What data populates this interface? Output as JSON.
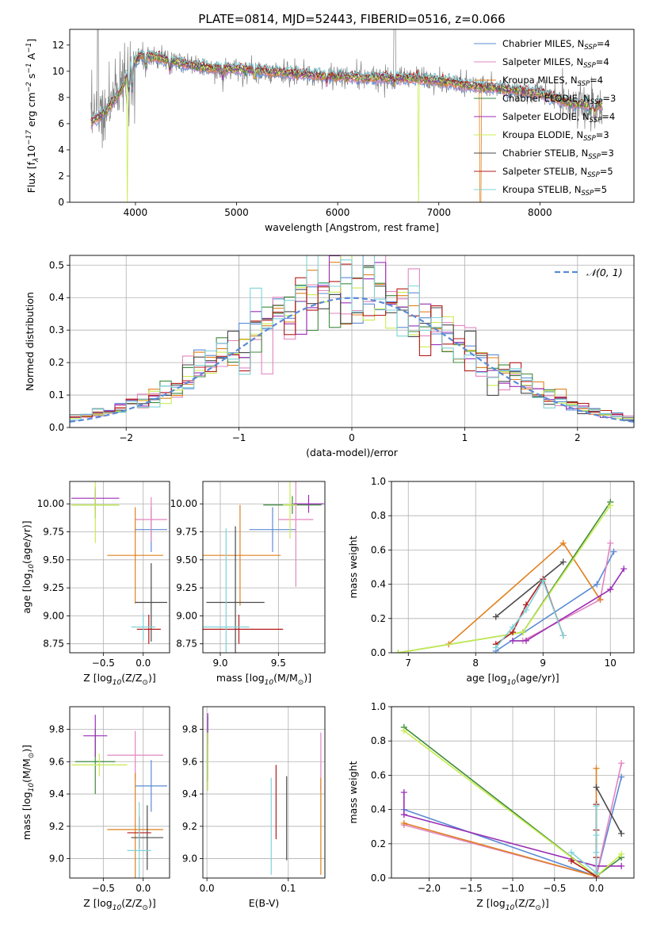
{
  "title": "PLATE=0814, MJD=52443, FIBERID=0516, z=0.066",
  "models": [
    {
      "name": "Chabrier MILES, N$_{SSP}$=4",
      "label_main": "Chabrier MILES, N",
      "label_sub": "SSP",
      "label_tail": "=4",
      "color": "#5b8bd6"
    },
    {
      "name": "Salpeter MILES, N$_{SSP}$=4",
      "label_main": "Salpeter MILES, N",
      "label_sub": "SSP",
      "label_tail": "=4",
      "color": "#e285c0"
    },
    {
      "name": "Kroupa MILES, N$_{SSP}$=4",
      "label_main": "Kroupa MILES, N",
      "label_sub": "SSP",
      "label_tail": "=4",
      "color": "#e0801e"
    },
    {
      "name": "Chabrier ELODIE, N$_{SSP}$=3",
      "label_main": "Chabrier ELODIE, N",
      "label_sub": "SSP",
      "label_tail": "=3",
      "color": "#3e8a3e"
    },
    {
      "name": "Salpeter ELODIE, N$_{SSP}$=4",
      "label_main": "Salpeter ELODIE, N",
      "label_sub": "SSP",
      "label_tail": "=4",
      "color": "#9a2fb5"
    },
    {
      "name": "Kroupa ELODIE, N$_{SSP}$=3",
      "label_main": "Kroupa ELODIE, N",
      "label_sub": "SSP",
      "label_tail": "=3",
      "color": "#c8ec50"
    },
    {
      "name": "Chabrier STELIB, N$_{SSP}$=3",
      "label_main": "Chabrier STELIB, N",
      "label_sub": "SSP",
      "label_tail": "=3",
      "color": "#4a4a4a"
    },
    {
      "name": "Salpeter STELIB, N$_{SSP}$=5",
      "label_main": "Salpeter STELIB, N",
      "label_sub": "SSP",
      "label_tail": "=5",
      "color": "#b51c1c"
    },
    {
      "name": "Kroupa STELIB, N$_{SSP}$=5",
      "label_main": "Kroupa STELIB, N",
      "label_sub": "SSP",
      "label_tail": "=5",
      "color": "#7fd3d8"
    }
  ],
  "chart_data": [
    {
      "id": "spectrum",
      "type": "line",
      "xlabel": "wavelength [Angstrom, rest frame]",
      "ylabel": "Flux [f$_\\lambda$10$^{-17}$ erg cm$^{-2}$ s$^{-1}$ A$^{-1}$]",
      "xlim": [
        3350,
        8930
      ],
      "ylim": [
        0,
        13.2
      ],
      "xticks": [
        4000,
        5000,
        6000,
        7000,
        8000
      ],
      "yticks": [
        0,
        2,
        4,
        6,
        8,
        10,
        12
      ],
      "legend": "upper right",
      "data_color": "#808080",
      "continuum": {
        "x": [
          3560,
          3700,
          3850,
          3950,
          4050,
          4200,
          4400,
          4600,
          4800,
          5000,
          5300,
          5600,
          6000,
          6300,
          6600,
          7000,
          7300,
          7600,
          8000,
          8300,
          8600
        ],
        "y": [
          6.1,
          6.9,
          8.4,
          10.4,
          11.2,
          11.1,
          10.7,
          10.4,
          10.2,
          10.2,
          10.0,
          9.8,
          9.6,
          9.5,
          9.5,
          9.3,
          8.9,
          8.7,
          8.3,
          7.6,
          7.4
        ]
      }
    },
    {
      "id": "residuals",
      "type": "step",
      "xlabel": "(data-model)/error",
      "ylabel": "Normed distribution",
      "xlim": [
        -2.5,
        2.5
      ],
      "ylim": [
        0,
        0.53
      ],
      "xticks": [
        -2,
        -1,
        0,
        1,
        2
      ],
      "yticks": [
        0.0,
        0.1,
        0.2,
        0.3,
        0.4,
        0.5
      ],
      "bin_width": 0.1,
      "reference": {
        "name": "$\\mathcal{N}(0,1)$",
        "label": "𝒩(0, 1)",
        "color": "#5b8bd6",
        "style": "dashed"
      },
      "grid": true
    },
    {
      "id": "age_vs_Z",
      "type": "errorbar",
      "xlabel": "Z [log$_{10}$(Z/Z$_\\odot$)]",
      "ylabel": "age  [log$_{10}$(age/yr)]",
      "xlim": [
        -0.92,
        0.33
      ],
      "ylim": [
        8.67,
        10.2
      ],
      "xticks": [
        -0.5,
        0.0
      ],
      "yticks": [
        8.75,
        9.0,
        9.25,
        9.5,
        9.75,
        10.0
      ],
      "points": [
        {
          "x": 0.1,
          "xerr": 0.2,
          "y": 9.77,
          "yerr": 0.2
        },
        {
          "x": 0.1,
          "xerr": 0.2,
          "y": 9.86,
          "yerr": 0.2
        },
        {
          "x": -0.1,
          "xerr": 0.35,
          "y": 9.54,
          "yerr": 0.43
        },
        {
          "x": -0.6,
          "xerr": 0.3,
          "y": 9.99,
          "yerr": 0.12
        },
        {
          "x": -0.6,
          "xerr": 0.3,
          "y": 10.05,
          "yerr": 0.1
        },
        {
          "x": -0.6,
          "xerr": 0.3,
          "y": 9.99,
          "yerr": 0.34
        },
        {
          "x": 0.1,
          "xerr": 0.2,
          "y": 9.12,
          "yerr": 0.35
        },
        {
          "x": 0.07,
          "xerr": 0.15,
          "y": 8.88,
          "yerr": 0.13
        },
        {
          "x": 0.0,
          "xerr": 0.15,
          "y": 8.9,
          "yerr": 0.12
        }
      ]
    },
    {
      "id": "age_vs_mass",
      "type": "errorbar",
      "xlabel": "mass [log$_{10}$(M/M$_\\odot$)]",
      "ylabel": "",
      "xlim": [
        8.85,
        9.9
      ],
      "ylim": [
        8.67,
        10.2
      ],
      "xticks": [
        9.0,
        9.5
      ],
      "yticks": [
        8.75,
        9.0,
        9.25,
        9.5,
        9.75,
        10.0
      ],
      "points": [
        {
          "x": 9.45,
          "xerr": 0.2,
          "y": 9.77,
          "yerr": 0.2
        },
        {
          "x": 9.65,
          "xerr": 0.15,
          "y": 9.86,
          "yerr": 0.6
        },
        {
          "x": 9.17,
          "xerr": 0.35,
          "y": 9.54,
          "yerr": 0.45
        },
        {
          "x": 9.62,
          "xerr": 0.25,
          "y": 9.99,
          "yerr": 0.08
        },
        {
          "x": 9.76,
          "xerr": 0.13,
          "y": 10.0,
          "yerr": 0.08
        },
        {
          "x": 9.6,
          "xerr": 0.06,
          "y": 9.99,
          "yerr": 0.3
        },
        {
          "x": 9.13,
          "xerr": 0.25,
          "y": 9.12,
          "yerr": 0.68
        },
        {
          "x": 9.16,
          "xerr": 0.38,
          "y": 8.88,
          "yerr": 0.13
        },
        {
          "x": 9.05,
          "xerr": 0.2,
          "y": 8.9,
          "yerr": 0.88
        }
      ]
    },
    {
      "id": "mass_weight_vs_age",
      "type": "line",
      "xlabel": "age  [log$_{10}$(age/yr)]",
      "ylabel": "mass weight",
      "xlim": [
        6.75,
        10.35
      ],
      "ylim": [
        0,
        1.0
      ],
      "xticks": [
        7,
        8,
        9,
        10
      ],
      "yticks": [
        0.0,
        0.2,
        0.4,
        0.6,
        0.8,
        1.0
      ],
      "series": [
        {
          "x": [
            8.3,
            9.8,
            10.05
          ],
          "y": [
            0.01,
            0.4,
            0.59
          ]
        },
        {
          "x": [
            8.7,
            9.85,
            10.0
          ],
          "y": [
            0.07,
            0.31,
            0.64
          ]
        },
        {
          "x": [
            7.6,
            9.3,
            9.85
          ],
          "y": [
            0.05,
            0.64,
            0.31
          ]
        },
        {
          "x": [
            6.85,
            8.7,
            10.0
          ],
          "y": [
            0.0,
            0.12,
            0.88
          ]
        },
        {
          "x": [
            8.55,
            8.75,
            10.0,
            10.2
          ],
          "y": [
            0.07,
            0.07,
            0.37,
            0.49
          ]
        },
        {
          "x": [
            6.85,
            8.7,
            10.0
          ],
          "y": [
            0.0,
            0.12,
            0.86
          ]
        },
        {
          "x": [
            8.3,
            9.3
          ],
          "y": [
            0.21,
            0.53
          ]
        },
        {
          "x": [
            8.3,
            8.55,
            8.75,
            9.0,
            9.3
          ],
          "y": [
            0.05,
            0.12,
            0.28,
            0.43,
            0.1
          ]
        },
        {
          "x": [
            8.3,
            8.55,
            8.75,
            9.0,
            9.3
          ],
          "y": [
            0.03,
            0.15,
            0.25,
            0.42,
            0.1
          ]
        }
      ]
    },
    {
      "id": "mass_vs_Z",
      "type": "errorbar",
      "xlabel": "Z [log$_{10}$(Z/Z$_\\odot$)]",
      "ylabel": "mass [log$_{10}$(M/M$_\\odot$)]",
      "xlim": [
        -0.92,
        0.33
      ],
      "ylim": [
        8.88,
        9.94
      ],
      "xticks": [
        -0.5,
        0.0
      ],
      "yticks": [
        9.0,
        9.2,
        9.4,
        9.6,
        9.8
      ],
      "points": [
        {
          "x": 0.1,
          "xerr": 0.2,
          "y": 9.45,
          "yerr": 0.16
        },
        {
          "x": -0.1,
          "xerr": 0.35,
          "y": 9.64,
          "yerr": 0.15
        },
        {
          "x": -0.1,
          "xerr": 0.35,
          "y": 9.18,
          "yerr": 0.35
        },
        {
          "x": -0.6,
          "xerr": 0.25,
          "y": 9.6,
          "yerr": 0.2
        },
        {
          "x": -0.6,
          "xerr": 0.15,
          "y": 9.76,
          "yerr": 0.13
        },
        {
          "x": -0.55,
          "xerr": 0.35,
          "y": 9.58,
          "yerr": 0.07
        },
        {
          "x": 0.05,
          "xerr": 0.2,
          "y": 9.13,
          "yerr": 0.2
        },
        {
          "x": -0.05,
          "xerr": 0.15,
          "y": 9.16,
          "yerr": 0.1
        },
        {
          "x": -0.05,
          "xerr": 0.15,
          "y": 9.05,
          "yerr": 0.3
        }
      ]
    },
    {
      "id": "mass_vs_EBV",
      "type": "errorbar",
      "xlabel": "E(B-V)",
      "ylabel": "",
      "xlim": [
        -0.005,
        0.145
      ],
      "ylim": [
        8.88,
        9.94
      ],
      "xticks": [
        0.0,
        0.1
      ],
      "yticks": [
        9.0,
        9.2,
        9.4,
        9.6,
        9.8
      ],
      "points": [
        {
          "x": 0.001,
          "xerr": 0,
          "y": 9.8,
          "yerr": 0.08
        },
        {
          "x": 0.14,
          "xerr": 0,
          "y": 9.6,
          "yerr": 0.18
        },
        {
          "x": 0.14,
          "xerr": 0,
          "y": 9.2,
          "yerr": 0.3
        },
        {
          "x": 0.001,
          "xerr": 0,
          "y": 9.6,
          "yerr": 0.12
        },
        {
          "x": 0.001,
          "xerr": 0,
          "y": 9.8,
          "yerr": 0.1
        },
        {
          "x": 0.001,
          "xerr": 0,
          "y": 9.6,
          "yerr": 0.18
        },
        {
          "x": 0.098,
          "xerr": 0,
          "y": 9.25,
          "yerr": 0.26
        },
        {
          "x": 0.085,
          "xerr": 0,
          "y": 9.35,
          "yerr": 0.23
        },
        {
          "x": 0.079,
          "xerr": 0,
          "y": 9.2,
          "yerr": 0.3
        }
      ]
    },
    {
      "id": "mass_weight_vs_Z",
      "type": "line",
      "xlabel": "Z [log$_{10}$(Z/Z$_\\odot$)]",
      "ylabel": "mass weight",
      "xlim": [
        -2.45,
        0.45
      ],
      "ylim": [
        0,
        1.0
      ],
      "xticks": [
        -2.0,
        -1.5,
        -1.0,
        -0.5,
        0.0
      ],
      "yticks": [
        0.0,
        0.2,
        0.4,
        0.6,
        0.8,
        1.0
      ],
      "series": [
        {
          "x": [
            -2.3,
            0.0,
            0.3
          ],
          "y": [
            0.4,
            0.01,
            0.59
          ]
        },
        {
          "x": [
            -2.3,
            0.0,
            0.3
          ],
          "y": [
            0.31,
            0.01,
            0.67
          ]
        },
        {
          "x": [
            -2.3,
            0.0,
            0.0
          ],
          "y": [
            0.32,
            0.01,
            0.64
          ]
        },
        {
          "x": [
            -2.3,
            0.0,
            0.3
          ],
          "y": [
            0.88,
            0.01,
            0.12
          ]
        },
        {
          "x": [
            -2.3,
            -2.3,
            0.0,
            0.3
          ],
          "y": [
            0.5,
            0.37,
            0.07,
            0.07
          ]
        },
        {
          "x": [
            -2.3,
            0.0,
            0.3
          ],
          "y": [
            0.86,
            0.01,
            0.14
          ]
        },
        {
          "x": [
            0.0,
            0.3
          ],
          "y": [
            0.53,
            0.26
          ]
        },
        {
          "x": [
            -0.3,
            0.0,
            0.0,
            0.0,
            0.0
          ],
          "y": [
            0.1,
            0.01,
            0.12,
            0.28,
            0.43
          ]
        },
        {
          "x": [
            -0.3,
            0.0,
            0.0,
            0.0,
            0.0
          ],
          "y": [
            0.15,
            0.03,
            0.15,
            0.25,
            0.42
          ]
        }
      ]
    }
  ]
}
